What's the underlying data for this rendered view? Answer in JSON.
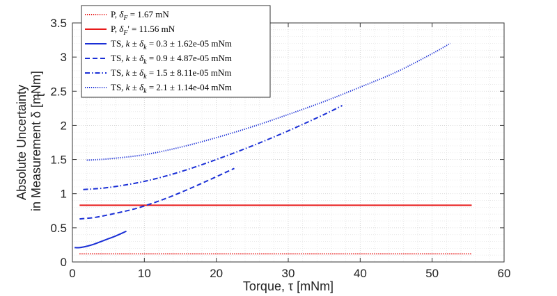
{
  "chart_data": {
    "type": "line",
    "xlabel": "Torque, τ  [mNm]",
    "ylabel_line1": "Absolute Uncertainty",
    "ylabel_line2": "in Measurement δ  [mNm]",
    "ylabel_sub": "τ",
    "xlim": [
      0,
      60
    ],
    "ylim": [
      0,
      3.5
    ],
    "x_ticks": [
      "0",
      "10",
      "20",
      "30",
      "40",
      "50",
      "60"
    ],
    "y_ticks": [
      "0",
      "0.5",
      "1",
      "1.5",
      "2",
      "2.5",
      "3",
      "3.5"
    ],
    "grid": true,
    "minor_grid": true,
    "legend_position": "top-left",
    "series": [
      {
        "name": "P, δF = 1.67 mN",
        "legend": {
          "prefix": "P, ",
          "sym": "δ",
          "sub": "F",
          "suffix": " = 1.67 mN"
        },
        "color": "#e81a1a",
        "style": "dotted",
        "x": [
          1,
          55.5
        ],
        "y": [
          0.12,
          0.12
        ]
      },
      {
        "name": "P, δF' = 11.56 mN",
        "legend": {
          "prefix": "P, ",
          "sym": "δ",
          "sub": "F",
          "suffix": "' = 11.56 mN"
        },
        "color": "#e81a1a",
        "style": "solid",
        "x": [
          1,
          55.5
        ],
        "y": [
          0.83,
          0.83
        ]
      },
      {
        "name": "TS, k ± δk = 0.3 ± 1.62e-05 mNm",
        "legend": {
          "prefix": "TS, ",
          "sym": "k ± δ",
          "sub": "k",
          "suffix": " = 0.3 ± 1.62e-05 mNm"
        },
        "color": "#1a2fd6",
        "style": "solid",
        "x": [
          0.3,
          1,
          2,
          3,
          4,
          5,
          6,
          7.5
        ],
        "y": [
          0.21,
          0.21,
          0.23,
          0.26,
          0.3,
          0.34,
          0.38,
          0.45
        ]
      },
      {
        "name": "TS, k ± δk = 0.9 ± 4.87e-05 mNm",
        "legend": {
          "prefix": "TS, ",
          "sym": "k ± δ",
          "sub": "k",
          "suffix": " = 0.9 ± 4.87e-05 mNm"
        },
        "color": "#1a2fd6",
        "style": "dashed",
        "x": [
          1,
          3,
          5,
          8,
          10,
          13,
          16,
          19,
          22.5
        ],
        "y": [
          0.63,
          0.65,
          0.69,
          0.76,
          0.82,
          0.93,
          1.06,
          1.2,
          1.37
        ]
      },
      {
        "name": "TS, k ± δk = 1.5 ± 8.11e-05 mNm",
        "legend": {
          "prefix": "TS, ",
          "sym": "k ± δ",
          "sub": "k",
          "suffix": " = 1.5 ± 8.11e-05 mNm"
        },
        "color": "#1a2fd6",
        "style": "dashdot",
        "x": [
          1.5,
          5,
          10,
          15,
          20,
          25,
          30,
          35,
          37.5
        ],
        "y": [
          1.06,
          1.09,
          1.18,
          1.32,
          1.5,
          1.7,
          1.92,
          2.16,
          2.29
        ]
      },
      {
        "name": "TS, k ± δk = 2.1 ± 1.14e-04 mNm",
        "legend": {
          "prefix": "TS, ",
          "sym": "k ± δ",
          "sub": "k",
          "suffix": " = 2.1 ± 1.14e-04 mNm"
        },
        "color": "#1a2fd6",
        "style": "dotted",
        "x": [
          2,
          5,
          10,
          15,
          20,
          25,
          30,
          35,
          40,
          45,
          50,
          52.5
        ],
        "y": [
          1.49,
          1.51,
          1.57,
          1.68,
          1.82,
          1.98,
          2.16,
          2.35,
          2.56,
          2.78,
          3.05,
          3.2
        ]
      }
    ]
  }
}
